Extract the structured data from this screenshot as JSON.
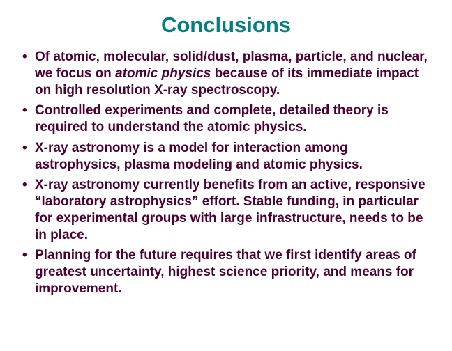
{
  "title": {
    "text": "Conclusions",
    "color": "#008080"
  },
  "bullets": {
    "text_color": "#4d0033",
    "bullet_color": "#4d0033",
    "items": [
      {
        "prefix": "Of atomic, molecular, solid/dust, plasma, particle, and nuclear, we focus on ",
        "em": "atomic physics",
        "suffix": " because of its immediate impact on high resolution X-ray spectroscopy."
      },
      {
        "prefix": "Controlled experiments and complete, detailed theory is required to understand the atomic physics.",
        "em": "",
        "suffix": ""
      },
      {
        "prefix": "X-ray astronomy is a model for interaction among astrophysics, plasma modeling and atomic physics.",
        "em": "",
        "suffix": ""
      },
      {
        "prefix": "X-ray astronomy currently benefits from an active, responsive “laboratory astrophysics” effort. Stable funding, in particular for experimental groups with large infrastructure, needs to be in place.",
        "em": "",
        "suffix": ""
      },
      {
        "prefix": "Planning for the future requires that we first identify areas of greatest uncertainty, highest science priority, and means for improvement.",
        "em": "",
        "suffix": ""
      }
    ]
  }
}
